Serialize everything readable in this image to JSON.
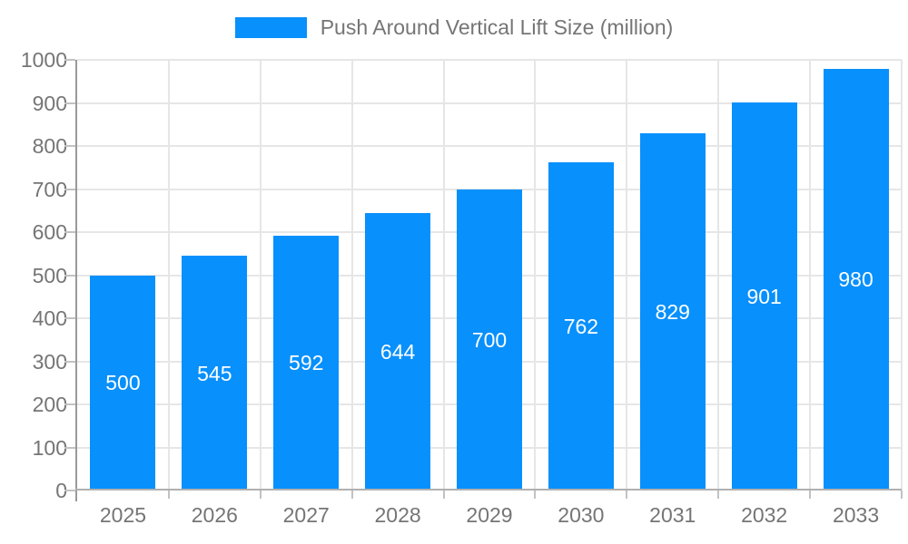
{
  "legend": {
    "label": "Push Around Vertical Lift Size (million)"
  },
  "chart_data": {
    "type": "bar",
    "title": "Push Around Vertical Lift Size (million)",
    "legend_entries": [
      "Push Around Vertical Lift Size (million)"
    ],
    "legend_position": "top-center",
    "categories": [
      "2025",
      "2026",
      "2027",
      "2028",
      "2029",
      "2030",
      "2031",
      "2032",
      "2033"
    ],
    "values": [
      500,
      545,
      592,
      644,
      700,
      762,
      829,
      901,
      980
    ],
    "xlabel": "",
    "ylabel": "",
    "ylim": [
      0,
      1000
    ],
    "ytick_step": 100,
    "yticks": [
      0,
      100,
      200,
      300,
      400,
      500,
      600,
      700,
      800,
      900,
      1000
    ],
    "grid": true,
    "value_labels_position": "inside-center",
    "colors": {
      "bar": "#0890fc",
      "axis_label": "#757575",
      "value_label": "#ffffff",
      "gridline": "#e6e6e6",
      "axis_line": "#b0b0b0",
      "y_axis_line": "#999999",
      "tick": "#c2c2c2",
      "background": "#ffffff"
    }
  }
}
